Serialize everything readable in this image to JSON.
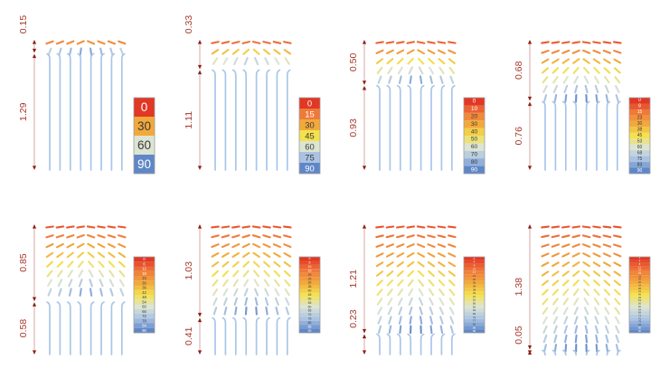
{
  "colors": {
    "background": "#FFFFFF",
    "annotation_red": "#A6392D",
    "arrowhead_red": "#8B2015",
    "dim_line_red": "rgba(166,57,45,0.55)",
    "rod_blue": "#A9C6E8",
    "colorbar_border": "#9E9E9E",
    "cell_text_dark": "#3A3A3A",
    "cell_text_light": "#FFFFFF",
    "colormap_stops": [
      [
        0.0,
        "#E13724"
      ],
      [
        0.167,
        "#F0793A"
      ],
      [
        0.333,
        "#F2A93B"
      ],
      [
        0.5,
        "#F4E14E"
      ],
      [
        0.667,
        "#DCE4D2"
      ],
      [
        0.833,
        "#AAC3E3"
      ],
      [
        1.0,
        "#5F87C7"
      ]
    ]
  },
  "field": {
    "rod_columns": 8,
    "angle_min": 0,
    "angle_max": 90
  },
  "panels": [
    {
      "dim_top_label": "0.15",
      "dim_top_value": 0.15,
      "dim_bottom_label": "1.29",
      "dim_bottom_value": 1.29,
      "colorbar_values": [
        0,
        30,
        60,
        90
      ]
    },
    {
      "dim_top_label": "0.33",
      "dim_top_value": 0.33,
      "dim_bottom_label": "1.11",
      "dim_bottom_value": 1.11,
      "colorbar_values": [
        0,
        15,
        30,
        45,
        60,
        75,
        90
      ]
    },
    {
      "dim_top_label": "0.50",
      "dim_top_value": 0.5,
      "dim_bottom_label": "0.93",
      "dim_bottom_value": 0.93,
      "colorbar_values": [
        0,
        10,
        20,
        30,
        40,
        50,
        60,
        70,
        80,
        90
      ]
    },
    {
      "dim_top_label": "0.68",
      "dim_top_value": 0.68,
      "dim_bottom_label": "0.76",
      "dim_bottom_value": 0.76,
      "colorbar_values": [
        0,
        8,
        15,
        23,
        30,
        38,
        45,
        53,
        60,
        68,
        75,
        83,
        90
      ]
    },
    {
      "dim_top_label": "0.85",
      "dim_top_value": 0.85,
      "dim_bottom_label": "0.58",
      "dim_bottom_value": 0.58,
      "colorbar_values": [
        0,
        6,
        12,
        18,
        24,
        30,
        36,
        42,
        48,
        54,
        60,
        66,
        72,
        78,
        84,
        90
      ]
    },
    {
      "dim_top_label": "1.03",
      "dim_top_value": 1.03,
      "dim_bottom_label": "0.41",
      "dim_bottom_value": 0.41,
      "colorbar_values": [
        0,
        5,
        10,
        15,
        20,
        25,
        30,
        35,
        40,
        45,
        50,
        55,
        60,
        65,
        70,
        75,
        80,
        85,
        90
      ]
    },
    {
      "dim_top_label": "1.21",
      "dim_top_value": 1.21,
      "dim_bottom_label": "0.23",
      "dim_bottom_value": 0.23,
      "colorbar_values": [
        0,
        4,
        9,
        13,
        17,
        21,
        26,
        30,
        34,
        39,
        43,
        47,
        51,
        56,
        60,
        64,
        69,
        73,
        77,
        81,
        86,
        90
      ]
    },
    {
      "dim_top_label": "1.38",
      "dim_top_value": 1.38,
      "dim_bottom_label": "0.05",
      "dim_bottom_value": 0.05,
      "colorbar_values": [
        0,
        4,
        8,
        11,
        15,
        19,
        23,
        26,
        30,
        34,
        38,
        41,
        45,
        49,
        53,
        56,
        60,
        64,
        68,
        71,
        75,
        79,
        83,
        86,
        90
      ]
    }
  ]
}
